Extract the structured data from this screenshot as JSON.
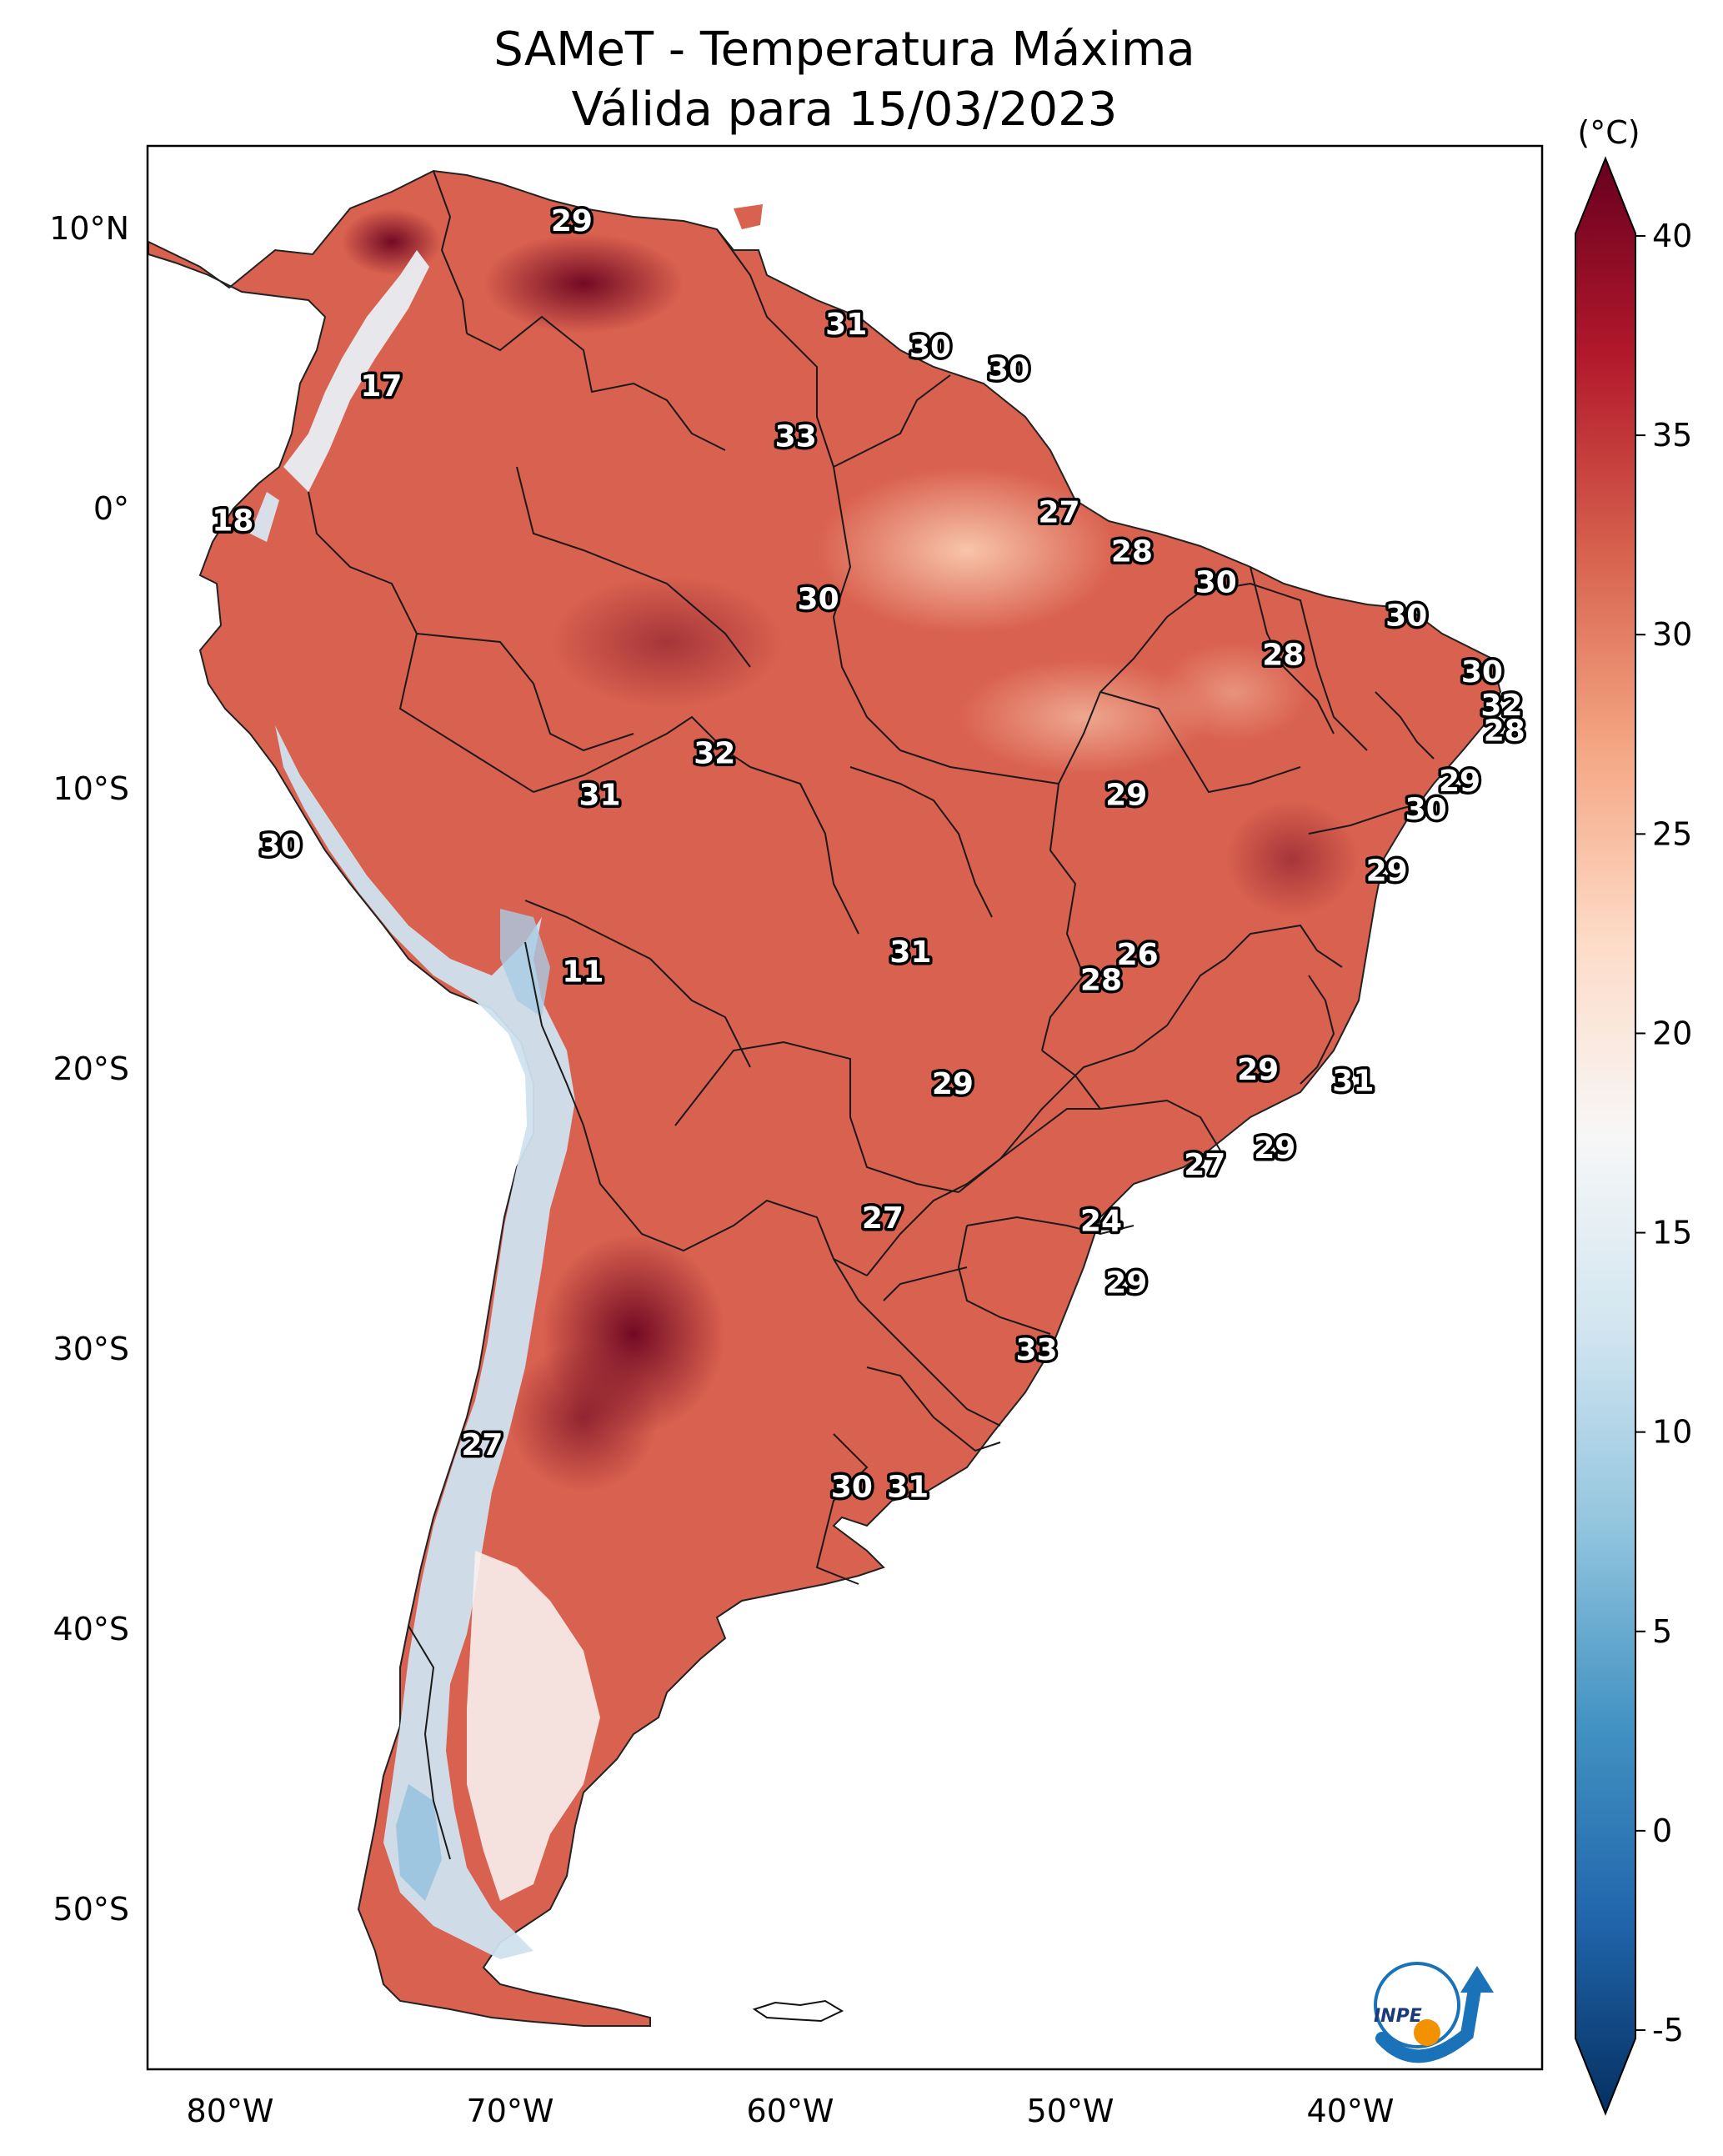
{
  "title": "SAMeT - Temperatura Máxima",
  "subtitle": "Válida para 15/03/2023",
  "colorbar": {
    "unit": "(°C)",
    "ticks": [
      "40",
      "35",
      "30",
      "25",
      "20",
      "15",
      "10",
      "5",
      "0",
      "-5"
    ],
    "stops": [
      "#67001f",
      "#b2182b",
      "#d6604d",
      "#f4a582",
      "#fddbc7",
      "#f7f7f7",
      "#d1e5f0",
      "#92c5de",
      "#4393c3",
      "#2166ac",
      "#053061"
    ]
  },
  "axes": {
    "lat_labels": [
      "10°N",
      "0°",
      "10°S",
      "20°S",
      "30°S",
      "40°S",
      "50°S"
    ],
    "lon_labels": [
      "80°W",
      "70°W",
      "60°W",
      "50°W",
      "40°W"
    ]
  },
  "logo": {
    "text": "INPE"
  },
  "temperature_labels": [
    {
      "t": "29",
      "lon": -67.8,
      "lat": 10.3
    },
    {
      "t": "17",
      "lon": -74.6,
      "lat": 4.4
    },
    {
      "t": "31",
      "lon": -58.0,
      "lat": 6.6
    },
    {
      "t": "30",
      "lon": -55.0,
      "lat": 5.8
    },
    {
      "t": "30",
      "lon": -52.2,
      "lat": 5.0
    },
    {
      "t": "33",
      "lon": -59.8,
      "lat": 2.6
    },
    {
      "t": "18",
      "lon": -79.9,
      "lat": -0.4
    },
    {
      "t": "27",
      "lon": -50.4,
      "lat": -0.1
    },
    {
      "t": "28",
      "lon": -47.8,
      "lat": -1.5
    },
    {
      "t": "30",
      "lon": -44.8,
      "lat": -2.6
    },
    {
      "t": "30",
      "lon": -59.0,
      "lat": -3.2
    },
    {
      "t": "30",
      "lon": -38.0,
      "lat": -3.8
    },
    {
      "t": "28",
      "lon": -42.4,
      "lat": -5.2
    },
    {
      "t": "30",
      "lon": -35.3,
      "lat": -5.8
    },
    {
      "t": "32",
      "lon": -34.6,
      "lat": -7.0
    },
    {
      "t": "28",
      "lon": -34.5,
      "lat": -7.9
    },
    {
      "t": "32",
      "lon": -62.7,
      "lat": -8.7
    },
    {
      "t": "31",
      "lon": -66.8,
      "lat": -10.2
    },
    {
      "t": "29",
      "lon": -48.0,
      "lat": -10.2
    },
    {
      "t": "29",
      "lon": -36.1,
      "lat": -9.7
    },
    {
      "t": "30",
      "lon": -37.3,
      "lat": -10.7
    },
    {
      "t": "30",
      "lon": -78.2,
      "lat": -12.0
    },
    {
      "t": "29",
      "lon": -38.7,
      "lat": -12.9
    },
    {
      "t": "31",
      "lon": -55.7,
      "lat": -15.8
    },
    {
      "t": "26",
      "lon": -47.6,
      "lat": -15.9
    },
    {
      "t": "28",
      "lon": -48.9,
      "lat": -16.8
    },
    {
      "t": "11",
      "lon": -67.4,
      "lat": -16.5
    },
    {
      "t": "29",
      "lon": -43.3,
      "lat": -20.0
    },
    {
      "t": "31",
      "lon": -39.9,
      "lat": -20.4
    },
    {
      "t": "29",
      "lon": -54.2,
      "lat": -20.5
    },
    {
      "t": "29",
      "lon": -42.7,
      "lat": -22.8
    },
    {
      "t": "27",
      "lon": -45.2,
      "lat": -23.4
    },
    {
      "t": "27",
      "lon": -56.7,
      "lat": -25.3
    },
    {
      "t": "24",
      "lon": -48.9,
      "lat": -25.4
    },
    {
      "t": "29",
      "lon": -48.0,
      "lat": -27.6
    },
    {
      "t": "33",
      "lon": -51.2,
      "lat": -30.0
    },
    {
      "t": "27",
      "lon": -71.0,
      "lat": -33.4
    },
    {
      "t": "30",
      "lon": -57.8,
      "lat": -34.9
    },
    {
      "t": "31",
      "lon": -55.8,
      "lat": -34.9
    }
  ]
}
